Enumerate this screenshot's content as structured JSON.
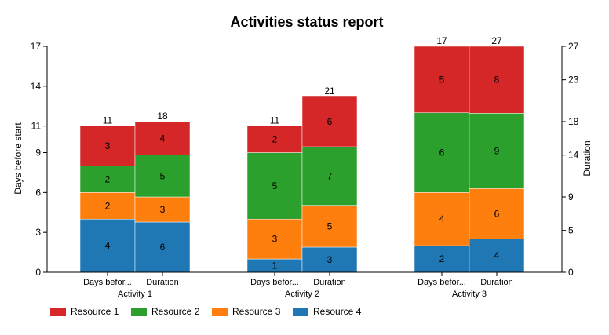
{
  "chart_data": {
    "type": "bar",
    "stacked": true,
    "title": "Activities status report",
    "ylabel_left": "Days before start",
    "ylabel_right": "Duration",
    "left_axis": {
      "ylim": [
        0,
        17
      ],
      "ticks": [
        0,
        3,
        6,
        9,
        11,
        14,
        17
      ]
    },
    "right_axis": {
      "ylim": [
        0,
        27
      ],
      "ticks": [
        0,
        5,
        9,
        14,
        18,
        23,
        27
      ]
    },
    "groups": [
      {
        "name": "Activity 1",
        "bars": [
          {
            "label": "Days befor...",
            "axis": "left",
            "total": "11",
            "values": {
              "Resource 4": 4,
              "Resource 3": 2,
              "Resource 2": 2,
              "Resource 1": 3
            }
          },
          {
            "label": "Duration",
            "axis": "right",
            "total": "18",
            "values": {
              "Resource 4": 6,
              "Resource 3": 3,
              "Resource 2": 5,
              "Resource 1": 4
            }
          }
        ]
      },
      {
        "name": "Activity 2",
        "bars": [
          {
            "label": "Days befor...",
            "axis": "left",
            "total": "11",
            "values": {
              "Resource 4": 1,
              "Resource 3": 3,
              "Resource 2": 5,
              "Resource 1": 2
            }
          },
          {
            "label": "Duration",
            "axis": "right",
            "total": "21",
            "values": {
              "Resource 4": 3,
              "Resource 3": 5,
              "Resource 2": 7,
              "Resource 1": 6
            }
          }
        ]
      },
      {
        "name": "Activity 3",
        "bars": [
          {
            "label": "Days befor...",
            "axis": "left",
            "total": "17",
            "values": {
              "Resource 4": 2,
              "Resource 3": 4,
              "Resource 2": 6,
              "Resource 1": 5
            }
          },
          {
            "label": "Duration",
            "axis": "right",
            "total": "27",
            "values": {
              "Resource 4": 4,
              "Resource 3": 6,
              "Resource 2": 9,
              "Resource 1": 8
            }
          }
        ]
      }
    ],
    "stack_order": [
      "Resource 4",
      "Resource 3",
      "Resource 2",
      "Resource 1"
    ],
    "legend": {
      "position": "bottom-left",
      "items": [
        {
          "name": "Resource 1",
          "color": "#d62728"
        },
        {
          "name": "Resource 2",
          "color": "#2ca02c"
        },
        {
          "name": "Resource 3",
          "color": "#ff7f0e"
        },
        {
          "name": "Resource 4",
          "color": "#1f77b4"
        }
      ]
    }
  }
}
